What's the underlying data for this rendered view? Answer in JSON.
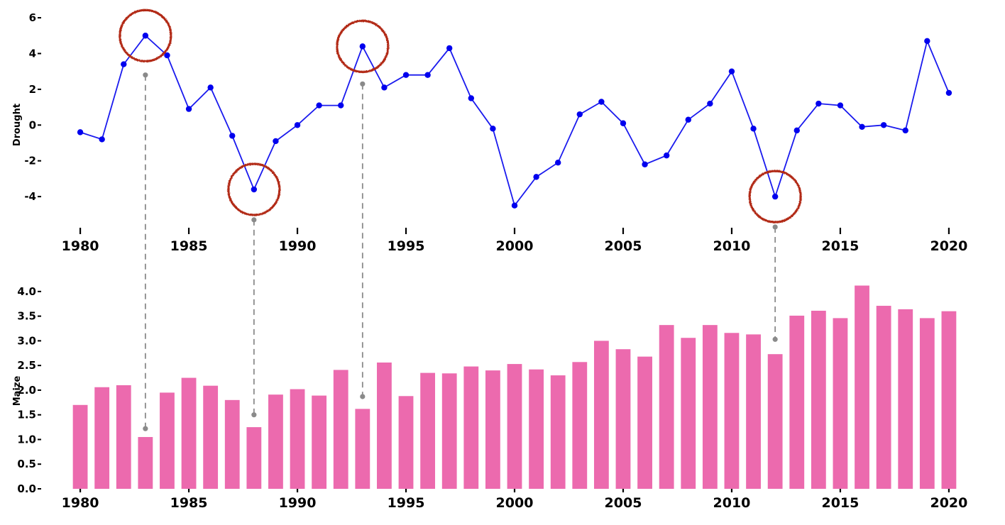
{
  "chart_data": [
    {
      "type": "line",
      "ylabel": "Drought",
      "xlabel": "",
      "ylim": [
        -5.9,
        6.2
      ],
      "xlim": [
        1978.2,
        2021.8
      ],
      "yticks": [
        -4,
        -2,
        0,
        2,
        4,
        6
      ],
      "xticks": [
        1980,
        1985,
        1990,
        1995,
        2000,
        2005,
        2010,
        2015,
        2020
      ],
      "grid": false,
      "line_color": "#1a1aee",
      "marker_color": "#0000ee",
      "series": [
        {
          "name": "Drought",
          "x": [
            1980,
            1981,
            1982,
            1983,
            1984,
            1985,
            1986,
            1987,
            1988,
            1989,
            1990,
            1991,
            1992,
            1993,
            1994,
            1995,
            1996,
            1997,
            1998,
            1999,
            2000,
            2001,
            2002,
            2003,
            2004,
            2005,
            2006,
            2007,
            2008,
            2009,
            2010,
            2011,
            2012,
            2013,
            2014,
            2015,
            2016,
            2017,
            2018,
            2019,
            2020
          ],
          "values": [
            -0.4,
            -0.8,
            3.4,
            5.0,
            3.9,
            0.9,
            2.1,
            -0.6,
            -3.6,
            -0.9,
            0.0,
            1.1,
            1.1,
            4.4,
            2.1,
            2.8,
            2.8,
            4.3,
            1.5,
            -0.2,
            -4.5,
            -2.9,
            -2.1,
            0.6,
            1.3,
            0.1,
            -2.2,
            -1.7,
            0.3,
            1.2,
            3.0,
            -0.2,
            -4.0,
            -0.3,
            1.2,
            1.1,
            -0.1,
            0.0,
            -0.3,
            4.7,
            1.8
          ]
        }
      ],
      "highlights": [
        1983,
        1988,
        1993,
        2012
      ],
      "highlight_color": "#b22a18"
    },
    {
      "type": "bar",
      "ylabel": "Maize",
      "xlabel": "",
      "ylim": [
        0,
        4.3
      ],
      "xlim": [
        1978.2,
        2021.8
      ],
      "yticks": [
        "0.0",
        "0.5",
        "1.0",
        "1.5",
        "2.0",
        "2.5",
        "3.0",
        "3.5",
        "4.0"
      ],
      "xticks": [
        1980,
        1985,
        1990,
        1995,
        2000,
        2005,
        2010,
        2015,
        2020
      ],
      "grid": false,
      "bar_color": "#ec6aae",
      "series": [
        {
          "name": "Maize",
          "x": [
            1980,
            1981,
            1982,
            1983,
            1984,
            1985,
            1986,
            1987,
            1988,
            1989,
            1990,
            1991,
            1992,
            1993,
            1994,
            1995,
            1996,
            1997,
            1998,
            1999,
            2000,
            2001,
            2002,
            2003,
            2004,
            2005,
            2006,
            2007,
            2008,
            2009,
            2010,
            2011,
            2012,
            2013,
            2014,
            2015,
            2016,
            2017,
            2018,
            2019,
            2020
          ],
          "values": [
            1.7,
            2.06,
            2.1,
            1.05,
            1.95,
            2.25,
            2.09,
            1.8,
            1.25,
            1.91,
            2.02,
            1.89,
            2.41,
            1.62,
            2.56,
            1.88,
            2.35,
            2.34,
            2.48,
            2.4,
            2.53,
            2.42,
            2.3,
            2.57,
            3.0,
            2.83,
            2.68,
            3.32,
            3.06,
            3.32,
            3.16,
            3.13,
            2.73,
            3.51,
            3.61,
            3.46,
            4.12,
            3.71,
            3.64,
            3.46,
            3.6
          ]
        }
      ]
    }
  ],
  "connectors": [
    {
      "year": 1983,
      "drought": 2.8,
      "maize": 1.22
    },
    {
      "year": 1988,
      "drought": -5.3,
      "maize": 1.5
    },
    {
      "year": 1993,
      "drought": 2.3,
      "maize": 1.87
    },
    {
      "year": 2012,
      "drought": -5.7,
      "maize": 3.03
    }
  ],
  "connector_color": "#8a8a8a"
}
